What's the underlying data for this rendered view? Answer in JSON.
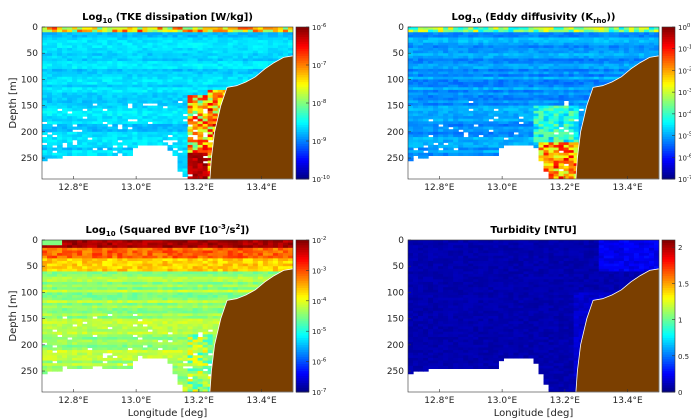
{
  "chart_data": [
    {
      "type": "heatmap",
      "title_base": "Log",
      "title_sub": "10",
      "title_rest": " (TKE dissipation [W/kg])",
      "ylabel": "Depth [m]",
      "xlabel": "",
      "x_ticks": [
        "12.8°E",
        "13.0°E",
        "13.2°E",
        "13.4°E"
      ],
      "x_tick_values": [
        12.8,
        13.0,
        13.2,
        13.4
      ],
      "xlim": [
        12.7,
        13.5
      ],
      "y_ticks": [
        "0",
        "50",
        "100",
        "150",
        "200",
        "250"
      ],
      "y_tick_values": [
        0,
        50,
        100,
        150,
        200,
        250
      ],
      "ylim": [
        290,
        0
      ],
      "colorbar": {
        "colormap": "jet",
        "ticks": [
          {
            "base": "10",
            "exp": "-6"
          },
          {
            "base": "10",
            "exp": "-7"
          },
          {
            "base": "10",
            "exp": "-8"
          },
          {
            "base": "10",
            "exp": "-9"
          },
          {
            "base": "10",
            "exp": "-10"
          }
        ],
        "tick_values": [
          -6,
          -7,
          -8,
          -9,
          -10
        ],
        "range": [
          -10,
          -6
        ]
      },
      "field": "tke",
      "color_land": "#7b3f00"
    },
    {
      "type": "heatmap",
      "title_base": "Log",
      "title_sub": "10",
      "title_rest": " (Eddy diffusivity (K",
      "title_sub2": "rho",
      "title_end": "))",
      "ylabel": "",
      "xlabel": "",
      "x_ticks": [
        "12.8°E",
        "13.0°E",
        "13.2°E",
        "13.4°E"
      ],
      "x_tick_values": [
        12.8,
        13.0,
        13.2,
        13.4
      ],
      "xlim": [
        12.7,
        13.5
      ],
      "y_ticks": [
        "0",
        "50",
        "100",
        "150",
        "200",
        "250"
      ],
      "y_tick_values": [
        0,
        50,
        100,
        150,
        200,
        250
      ],
      "ylim": [
        290,
        0
      ],
      "colorbar": {
        "colormap": "jet",
        "ticks": [
          {
            "base": "10",
            "exp": "0"
          },
          {
            "base": "10",
            "exp": "-1"
          },
          {
            "base": "10",
            "exp": "-2"
          },
          {
            "base": "10",
            "exp": "-3"
          },
          {
            "base": "10",
            "exp": "-4"
          },
          {
            "base": "10",
            "exp": "-5"
          },
          {
            "base": "10",
            "exp": "-6"
          },
          {
            "base": "10",
            "exp": "-7"
          }
        ],
        "tick_values": [
          0,
          -1,
          -2,
          -3,
          -4,
          -5,
          -6,
          -7
        ],
        "range": [
          -7,
          0
        ]
      },
      "field": "kz",
      "color_land": "#7b3f00"
    },
    {
      "type": "heatmap",
      "title_base": "Log",
      "title_sub": "10",
      "title_rest": " (Squared BVF [10",
      "title_sup": "-3",
      "title_end": "/s",
      "title_sup2": "2",
      "title_end2": "])",
      "ylabel": "Depth [m]",
      "xlabel": "Longitude [deg]",
      "x_ticks": [
        "12.8°E",
        "13.0°E",
        "13.2°E",
        "13.4°E"
      ],
      "x_tick_values": [
        12.8,
        13.0,
        13.2,
        13.4
      ],
      "xlim": [
        12.7,
        13.5
      ],
      "y_ticks": [
        "0",
        "50",
        "100",
        "150",
        "200",
        "250"
      ],
      "y_tick_values": [
        0,
        50,
        100,
        150,
        200,
        250
      ],
      "ylim": [
        290,
        0
      ],
      "colorbar": {
        "colormap": "jet",
        "ticks": [
          {
            "base": "10",
            "exp": "-2"
          },
          {
            "base": "10",
            "exp": "-3"
          },
          {
            "base": "10",
            "exp": "-4"
          },
          {
            "base": "10",
            "exp": "-5"
          },
          {
            "base": "10",
            "exp": "-6"
          },
          {
            "base": "10",
            "exp": "-7"
          }
        ],
        "tick_values": [
          -2,
          -3,
          -4,
          -5,
          -6,
          -7
        ],
        "range": [
          -7,
          -2
        ]
      },
      "field": "n2",
      "color_land": "#7b3f00"
    },
    {
      "type": "heatmap",
      "title_base": "Turbidity [NTU]",
      "ylabel": "",
      "xlabel": "Longitude [deg]",
      "x_ticks": [
        "12.8°E",
        "13.0°E",
        "13.2°E",
        "13.4°E"
      ],
      "x_tick_values": [
        12.8,
        13.0,
        13.2,
        13.4
      ],
      "xlim": [
        12.7,
        13.5
      ],
      "y_ticks": [
        "0",
        "50",
        "100",
        "150",
        "200",
        "250"
      ],
      "y_tick_values": [
        0,
        50,
        100,
        150,
        200,
        250
      ],
      "ylim": [
        290,
        0
      ],
      "colorbar": {
        "colormap": "jet",
        "ticks": [
          {
            "label": "2"
          },
          {
            "label": "1.5"
          },
          {
            "label": "1"
          },
          {
            "label": "0.5"
          },
          {
            "label": "0"
          }
        ],
        "tick_values": [
          2,
          1.5,
          1,
          0.5,
          0
        ],
        "range": [
          0,
          2.1
        ]
      },
      "field": "turb",
      "color_land": "#7b3f00"
    }
  ],
  "bathymetry": {
    "lon": [
      13.235,
      13.24,
      13.25,
      13.27,
      13.29,
      13.32,
      13.35,
      13.38,
      13.41,
      13.44,
      13.47,
      13.5
    ],
    "depth": [
      290,
      250,
      200,
      150,
      115,
      112,
      105,
      95,
      80,
      68,
      58,
      55
    ]
  },
  "coverage": {
    "lon": [
      12.7,
      12.74,
      12.78,
      12.86,
      12.92,
      12.98,
      13.0,
      13.05,
      13.1,
      13.15,
      13.2,
      13.235
    ],
    "max_depth": [
      255,
      250,
      245,
      245,
      245,
      245,
      225,
      225,
      225,
      290,
      290,
      290
    ]
  }
}
